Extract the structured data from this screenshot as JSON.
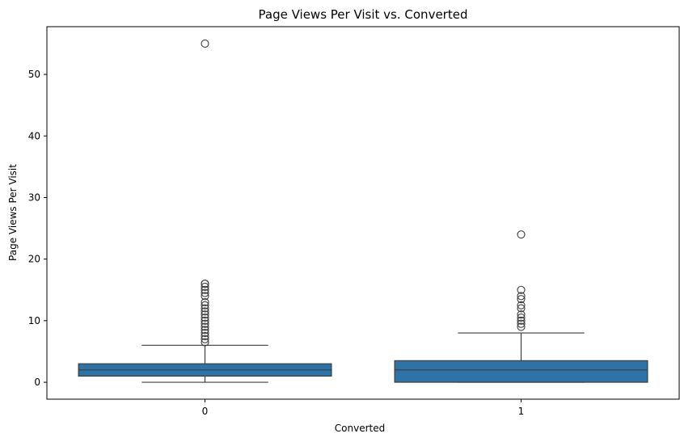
{
  "chart_data": {
    "type": "box",
    "title": "Page Views Per Visit vs. Converted",
    "xlabel": "Converted",
    "ylabel": "Page Views Per Visit",
    "categories": [
      "0",
      "1"
    ],
    "ylim": [
      -2.75,
      57.75
    ],
    "yticks": [
      0,
      10,
      20,
      30,
      40,
      50
    ],
    "yticklabels": [
      "0",
      "10",
      "20",
      "30",
      "40",
      "50"
    ],
    "grid": false,
    "box_color": "#2e73a7",
    "line_color": "#3d3d3d",
    "boxes": [
      {
        "category": "0",
        "min": 0,
        "q1": 1,
        "median": 2,
        "q3": 3,
        "max": 6,
        "outliers": [
          55,
          16,
          16,
          15.5,
          15,
          14.5,
          14,
          13,
          12.5,
          12,
          11.5,
          11,
          10.5,
          10,
          9.5,
          9,
          8.5,
          8,
          7.5,
          7,
          6.5
        ]
      },
      {
        "category": "1",
        "min": 0,
        "q1": 0,
        "median": 2,
        "q3": 3.5,
        "max": 8,
        "outliers": [
          24,
          15,
          14,
          13.5,
          12.5,
          12,
          11,
          10.5,
          10,
          9.5,
          9
        ]
      }
    ]
  }
}
